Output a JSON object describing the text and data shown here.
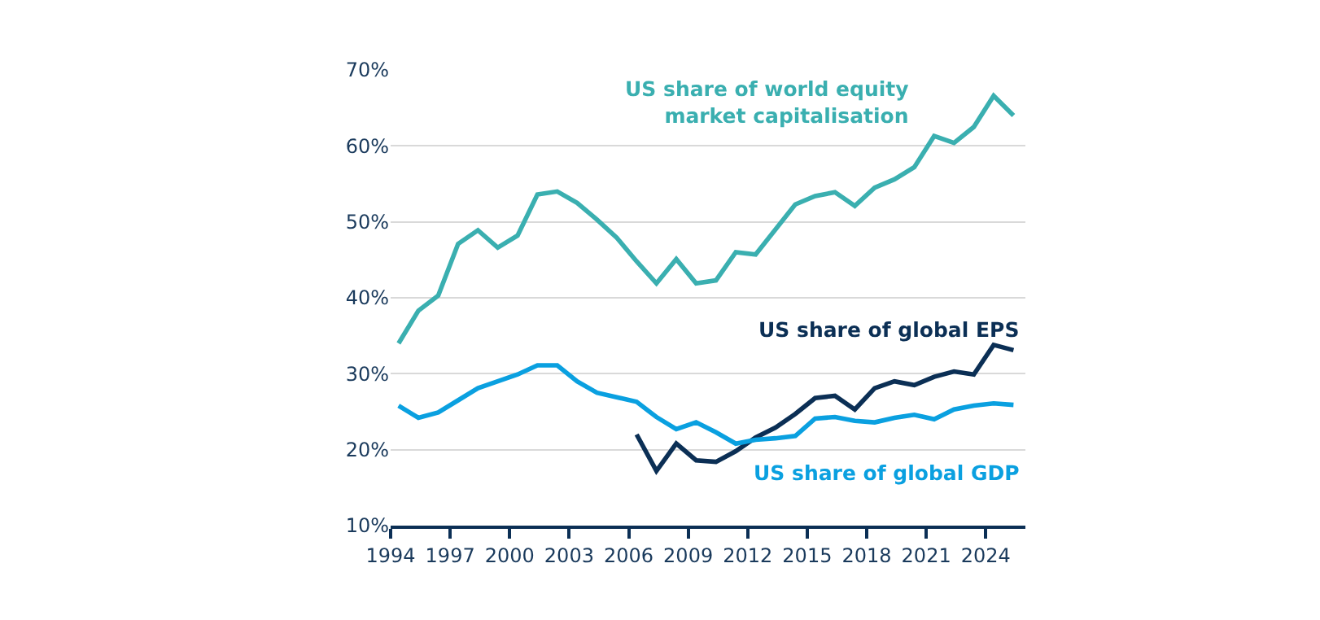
{
  "chart_data": {
    "type": "line",
    "xlim": [
      1994,
      2026
    ],
    "xticks": [
      1994,
      1997,
      2000,
      2003,
      2006,
      2009,
      2012,
      2015,
      2018,
      2021,
      2024
    ],
    "ylim": [
      10,
      70
    ],
    "yticks": [
      {
        "value": 10,
        "label": "10%"
      },
      {
        "value": 20,
        "label": "20%"
      },
      {
        "value": 30,
        "label": "30%"
      },
      {
        "value": 40,
        "label": "40%"
      },
      {
        "value": 50,
        "label": "50%"
      },
      {
        "value": 60,
        "label": "60%"
      },
      {
        "value": 70,
        "label": "70%"
      }
    ],
    "grid": "y",
    "legend": false,
    "marker": "none",
    "line_style": "solid",
    "series": [
      {
        "name": "US share of world equity market capitalisation",
        "color": "#3aafb0",
        "x": [
          1994.4,
          1995.4,
          1996.4,
          1997.4,
          1998.4,
          1999.4,
          2000.4,
          2001.4,
          2002.4,
          2003.4,
          2004.4,
          2005.4,
          2006.4,
          2007.4,
          2008.4,
          2009.4,
          2010.4,
          2011.4,
          2012.4,
          2013.4,
          2014.4,
          2015.4,
          2016.4,
          2017.4,
          2018.4,
          2019.4,
          2020.4,
          2021.4,
          2022.4,
          2023.4,
          2024.4,
          2025.4
        ],
        "values": [
          34.0,
          38.3,
          40.3,
          47.1,
          48.9,
          46.6,
          48.2,
          53.6,
          54.0,
          52.5,
          50.3,
          47.9,
          44.8,
          41.9,
          45.1,
          41.9,
          42.3,
          46.0,
          45.7,
          49.0,
          52.3,
          53.4,
          53.9,
          52.1,
          54.5,
          55.6,
          57.2,
          61.3,
          60.4,
          62.5,
          66.6,
          64.0
        ]
      },
      {
        "name": "US share of global EPS",
        "color": "#0b2f55",
        "x": [
          2006.4,
          2007.4,
          2008.4,
          2009.4,
          2010.4,
          2011.4,
          2012.4,
          2013.4,
          2014.4,
          2015.4,
          2016.4,
          2017.4,
          2018.4,
          2019.4,
          2020.4,
          2021.4,
          2022.4,
          2023.4,
          2024.4,
          2025.4
        ],
        "values": [
          22.0,
          17.2,
          20.8,
          18.6,
          18.4,
          19.8,
          21.6,
          22.9,
          24.7,
          26.8,
          27.1,
          25.3,
          28.1,
          29.0,
          28.5,
          29.6,
          30.3,
          29.9,
          33.8,
          33.1
        ]
      },
      {
        "name": "US share of global GDP",
        "color": "#0aa0e0",
        "x": [
          1994.4,
          1995.4,
          1996.4,
          1997.4,
          1998.4,
          1999.4,
          2000.4,
          2001.4,
          2002.4,
          2003.4,
          2004.4,
          2005.4,
          2006.4,
          2007.4,
          2008.4,
          2009.4,
          2010.4,
          2011.4,
          2012.4,
          2013.4,
          2014.4,
          2015.4,
          2016.4,
          2017.4,
          2018.4,
          2019.4,
          2020.4,
          2021.4,
          2022.4,
          2023.4,
          2024.4,
          2025.4
        ],
        "values": [
          25.8,
          24.2,
          24.9,
          26.5,
          28.1,
          29.0,
          29.9,
          31.1,
          31.1,
          29.0,
          27.5,
          26.9,
          26.3,
          24.3,
          22.7,
          23.6,
          22.3,
          20.8,
          21.3,
          21.5,
          21.8,
          24.1,
          24.3,
          23.8,
          23.6,
          24.2,
          24.6,
          24.0,
          25.3,
          25.8,
          26.1,
          25.9
        ]
      }
    ]
  }
}
